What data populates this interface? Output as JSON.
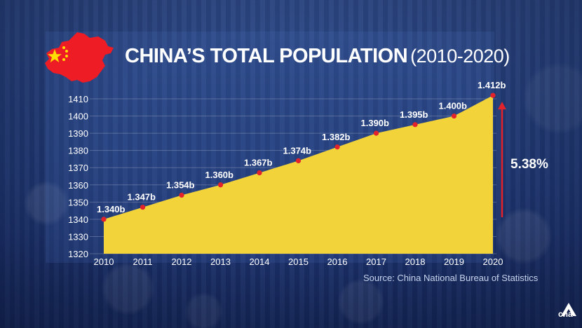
{
  "title": {
    "main": "CHINA’S TOTAL POPULATION",
    "range": "(2010-2020)"
  },
  "source": "Source: China National Bureau of Statistics",
  "change_annotation": "5.38%",
  "logo_text": "cna",
  "colors": {
    "area": "#f2d43a",
    "marker": "#e3232b",
    "arrow": "#e3232b",
    "flag_red": "#ee1c25",
    "flag_star": "#ffde00"
  },
  "icons": {
    "map": "china-flag-map-icon",
    "arrow": "up-arrow-icon",
    "logo": "cna-logo-icon"
  },
  "chart_data": {
    "type": "area",
    "title": "CHINA’S TOTAL POPULATION (2010-2020)",
    "x": [
      "2010",
      "2011",
      "2012",
      "2013",
      "2014",
      "2015",
      "2016",
      "2017",
      "2018",
      "2019",
      "2020"
    ],
    "values": [
      1340,
      1347,
      1354,
      1360,
      1367,
      1374,
      1382,
      1390,
      1395,
      1400,
      1412
    ],
    "data_labels": [
      "1.340b",
      "1.347b",
      "1.354b",
      "1.360b",
      "1.367b",
      "1.374b",
      "1.382b",
      "1.390b",
      "1.395b",
      "1.400b",
      "1.412b"
    ],
    "y_ticks": [
      1320,
      1330,
      1340,
      1350,
      1360,
      1370,
      1380,
      1390,
      1400,
      1410
    ],
    "ylim": [
      1320,
      1410
    ],
    "xlabel": "",
    "ylabel": "",
    "grid": true,
    "legend": "none"
  }
}
